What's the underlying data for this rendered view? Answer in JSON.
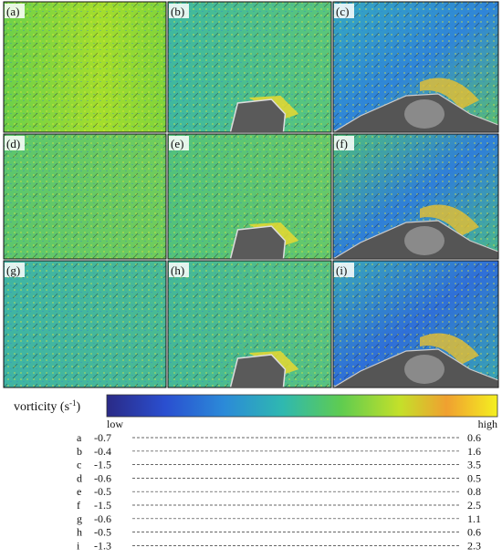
{
  "panels": [
    {
      "label": "(a)"
    },
    {
      "label": "(b)"
    },
    {
      "label": "(c)"
    },
    {
      "label": "(d)"
    },
    {
      "label": "(e)"
    },
    {
      "label": "(f)"
    },
    {
      "label": "(g)"
    },
    {
      "label": "(h)"
    },
    {
      "label": "(i)"
    }
  ],
  "colorbar": {
    "label_text": "vorticity (s",
    "label_sup": "-1",
    "label_end": ")",
    "low": "low",
    "high": "high"
  },
  "table": {
    "rows": [
      [
        "a",
        -0.7,
        0.6
      ],
      [
        "b",
        -0.4,
        1.6
      ],
      [
        "c",
        -1.5,
        3.5
      ],
      [
        "d",
        -0.6,
        0.5
      ],
      [
        "e",
        -0.5,
        0.8
      ],
      [
        "f",
        -1.5,
        2.5
      ],
      [
        "g",
        -0.6,
        1.1
      ],
      [
        "h",
        -0.5,
        0.6
      ],
      [
        "i",
        -1.3,
        2.3
      ]
    ]
  }
}
